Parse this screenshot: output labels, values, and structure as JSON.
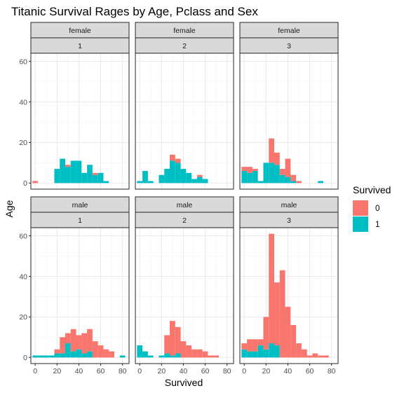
{
  "chart_data": {
    "type": "bar",
    "subtype": "stacked-histogram-faceted",
    "title": "Titanic Survival Rages by Age, Pclass and Sex",
    "xlabel": "Survived",
    "ylabel": "Age",
    "bin_width": 5,
    "xlim": [
      -4,
      86
    ],
    "ylim": [
      -3,
      64
    ],
    "x_ticks": [
      0,
      20,
      40,
      60,
      80
    ],
    "x_tick_labels": [
      "0",
      "20",
      "40",
      "60",
      "80"
    ],
    "y_ticks": [
      0,
      20,
      40,
      60
    ],
    "y_tick_labels": [
      "0",
      "20",
      "40",
      "60"
    ],
    "grid": true,
    "legend": {
      "title": "Survived",
      "position": "right",
      "entries": [
        {
          "label": "0",
          "color": "#F8766D"
        },
        {
          "label": "1",
          "color": "#00BFC4"
        }
      ]
    },
    "colors": {
      "0": "#F8766D",
      "1": "#00BFC4"
    },
    "bin_starts": [
      -2.5,
      2.5,
      7.5,
      12.5,
      17.5,
      22.5,
      27.5,
      32.5,
      37.5,
      42.5,
      47.5,
      52.5,
      57.5,
      62.5,
      67.5,
      72.5,
      77.5
    ],
    "panels": [
      {
        "row": 0,
        "col": 0,
        "strip_top": "female",
        "strip_bottom": "1",
        "survived_0": [
          1,
          0,
          0,
          0,
          0,
          0,
          1,
          0,
          0,
          0,
          0,
          1,
          0,
          0,
          0,
          0,
          0
        ],
        "survived_1": [
          0,
          0,
          0,
          0,
          7,
          12,
          8,
          11,
          11,
          5,
          9,
          4,
          5,
          1,
          0,
          0,
          0
        ]
      },
      {
        "row": 0,
        "col": 1,
        "strip_top": "female",
        "strip_bottom": "2",
        "survived_0": [
          0,
          0,
          0,
          0,
          0,
          0,
          3,
          2,
          0,
          0,
          0,
          1,
          0,
          0,
          0,
          0,
          0
        ],
        "survived_1": [
          1,
          6,
          1,
          0,
          4,
          7,
          11,
          10,
          7,
          5,
          2,
          3,
          2,
          0,
          0,
          0,
          0
        ]
      },
      {
        "row": 0,
        "col": 2,
        "strip_top": "female",
        "strip_bottom": "3",
        "survived_0": [
          2,
          3,
          1,
          0,
          0,
          12,
          6,
          3,
          9,
          3,
          1,
          0,
          0,
          0,
          0,
          0,
          0
        ],
        "survived_1": [
          6,
          5,
          6,
          1,
          10,
          10,
          9,
          4,
          3,
          1,
          0,
          0,
          0,
          0,
          1,
          0,
          0
        ]
      },
      {
        "row": 1,
        "col": 0,
        "strip_top": "male",
        "strip_bottom": "1",
        "survived_0": [
          0,
          0,
          0,
          0,
          2,
          8,
          5,
          11,
          7,
          10,
          11,
          8,
          6,
          4,
          3,
          0,
          0
        ],
        "survived_1": [
          1,
          1,
          1,
          1,
          2,
          2,
          7,
          3,
          4,
          2,
          3,
          0,
          0,
          0,
          0,
          0,
          1
        ]
      },
      {
        "row": 1,
        "col": 1,
        "strip_top": "male",
        "strip_bottom": "2",
        "survived_0": [
          0,
          0,
          0,
          0,
          0,
          9,
          17,
          13,
          8,
          6,
          4,
          4,
          3,
          1,
          1,
          0,
          0
        ],
        "survived_1": [
          6,
          3,
          1,
          0,
          1,
          2,
          1,
          2,
          0,
          0,
          0,
          0,
          0,
          0,
          0,
          0,
          0
        ]
      },
      {
        "row": 1,
        "col": 2,
        "strip_top": "male",
        "strip_bottom": "3",
        "survived_0": [
          3,
          6,
          6,
          3,
          16,
          54,
          31,
          43,
          25,
          16,
          7,
          4,
          1,
          2,
          1,
          1,
          0
        ],
        "survived_1": [
          4,
          3,
          3,
          6,
          4,
          7,
          6,
          0,
          0,
          0,
          0,
          0,
          0,
          0,
          0,
          0,
          0
        ]
      }
    ]
  }
}
